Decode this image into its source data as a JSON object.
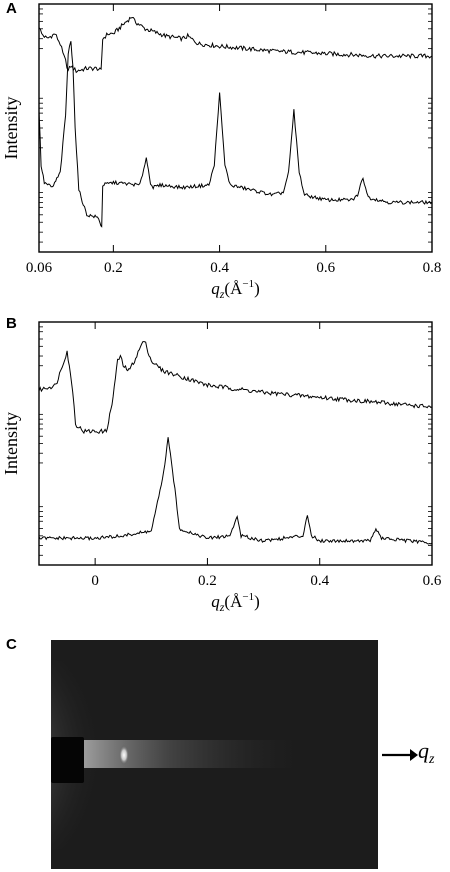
{
  "figure": {
    "panel_labels": [
      "A",
      "B",
      "C"
    ],
    "detector_axis_label": "q",
    "detector_axis_subscript": "z",
    "colors": {
      "trace": "#000000",
      "detector_background": "#1c1c1c",
      "beamstop": "#050505",
      "reflection": "#ffffff"
    }
  },
  "chart_data": [
    {
      "type": "line",
      "panel": "A",
      "xlabel_symbol": "q",
      "xlabel_subscript": "z",
      "xlabel_unit": "(Å",
      "xlabel_unit_exp": "−1",
      "xlabel_unit_close": ")",
      "ylabel": "Intensity",
      "xlim": [
        0.06,
        0.8
      ],
      "xticks": [
        0.06,
        0.2,
        0.4,
        0.6,
        0.8
      ],
      "xtick_labels": [
        "0.06",
        "0.2",
        "0.4",
        "0.6",
        "0.8"
      ],
      "y_scale": "log (offset traces, no tick labels)",
      "ylim": [
        0,
        1
      ],
      "series": [
        {
          "x": [
            0.06,
            0.065,
            0.075,
            0.09,
            0.1,
            0.105,
            0.11,
            0.115,
            0.12,
            0.13,
            0.15,
            0.17,
            0.177,
            0.18,
            0.19,
            0.2,
            0.22,
            0.235,
            0.24,
            0.26,
            0.3,
            0.33,
            0.34,
            0.36,
            0.4,
            0.5,
            0.6,
            0.7,
            0.8
          ],
          "y": [
            0.91,
            0.88,
            0.86,
            0.88,
            0.84,
            0.8,
            0.77,
            0.73,
            0.75,
            0.73,
            0.74,
            0.74,
            0.73,
            0.86,
            0.88,
            0.88,
            0.92,
            0.95,
            0.93,
            0.9,
            0.87,
            0.86,
            0.87,
            0.84,
            0.83,
            0.81,
            0.8,
            0.79,
            0.79
          ]
        },
        {
          "x": [
            0.06,
            0.064,
            0.07,
            0.085,
            0.1,
            0.11,
            0.115,
            0.12,
            0.124,
            0.128,
            0.135,
            0.15,
            0.17,
            0.175,
            0.178,
            0.18,
            0.2,
            0.25,
            0.262,
            0.27,
            0.275,
            0.29,
            0.33,
            0.38,
            0.39,
            0.4,
            0.41,
            0.42,
            0.5,
            0.52,
            0.53,
            0.54,
            0.55,
            0.56,
            0.6,
            0.65,
            0.66,
            0.67,
            0.68,
            0.72,
            0.8
          ],
          "y": [
            0.57,
            0.35,
            0.28,
            0.26,
            0.32,
            0.55,
            0.8,
            0.85,
            0.75,
            0.5,
            0.25,
            0.15,
            0.14,
            0.12,
            0.1,
            0.27,
            0.28,
            0.27,
            0.38,
            0.28,
            0.26,
            0.27,
            0.26,
            0.27,
            0.35,
            0.64,
            0.35,
            0.27,
            0.23,
            0.24,
            0.32,
            0.57,
            0.32,
            0.23,
            0.21,
            0.21,
            0.23,
            0.3,
            0.22,
            0.2,
            0.2
          ]
        }
      ]
    },
    {
      "type": "line",
      "panel": "B",
      "xlabel_symbol": "q",
      "xlabel_subscript": "z",
      "xlabel_unit": "(Å",
      "xlabel_unit_exp": "−1",
      "xlabel_unit_close": ")",
      "ylabel": "Intensity",
      "xlim": [
        -0.1,
        0.6
      ],
      "xticks": [
        0,
        0.2,
        0.4,
        0.6
      ],
      "xtick_labels": [
        "0",
        "0.2",
        "0.4",
        "0.6"
      ],
      "y_scale": "log (offset traces, no tick labels)",
      "ylim": [
        0,
        1
      ],
      "series": [
        {
          "x": [
            -0.1,
            -0.07,
            -0.05,
            -0.04,
            -0.035,
            -0.02,
            0.0,
            0.02,
            0.03,
            0.04,
            0.045,
            0.05,
            0.06,
            0.07,
            0.085,
            0.09,
            0.1,
            0.12,
            0.2,
            0.3,
            0.4,
            0.5,
            0.6
          ],
          "y": [
            0.72,
            0.74,
            0.88,
            0.72,
            0.58,
            0.55,
            0.55,
            0.55,
            0.66,
            0.84,
            0.86,
            0.82,
            0.8,
            0.84,
            0.92,
            0.91,
            0.84,
            0.8,
            0.74,
            0.71,
            0.69,
            0.67,
            0.65
          ]
        },
        {
          "x": [
            -0.1,
            0.0,
            0.05,
            0.1,
            0.12,
            0.13,
            0.14,
            0.15,
            0.2,
            0.24,
            0.253,
            0.26,
            0.3,
            0.37,
            0.378,
            0.385,
            0.4,
            0.49,
            0.5,
            0.51,
            0.6
          ],
          "y": [
            0.11,
            0.11,
            0.12,
            0.14,
            0.35,
            0.52,
            0.35,
            0.15,
            0.11,
            0.12,
            0.2,
            0.12,
            0.1,
            0.12,
            0.21,
            0.12,
            0.1,
            0.1,
            0.15,
            0.11,
            0.09
          ]
        }
      ]
    }
  ]
}
